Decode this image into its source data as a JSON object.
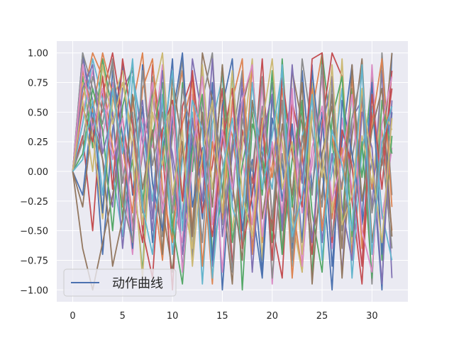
{
  "chart_data": {
    "type": "line",
    "title": "",
    "xlabel": "",
    "ylabel": "",
    "xlim": [
      -1.6,
      33.6
    ],
    "ylim": [
      -1.1,
      1.1
    ],
    "x_ticks": [
      0,
      5,
      10,
      15,
      20,
      25,
      30
    ],
    "x_tick_labels": [
      "0",
      "5",
      "10",
      "15",
      "20",
      "25",
      "30"
    ],
    "y_ticks": [
      -1.0,
      -0.75,
      -0.5,
      -0.25,
      0.0,
      0.25,
      0.5,
      0.75,
      1.0
    ],
    "y_tick_labels": [
      "−1.00",
      "−0.75",
      "−0.50",
      "−0.25",
      "0.00",
      "0.25",
      "0.50",
      "0.75",
      "1.00"
    ],
    "x": [
      0,
      1,
      2,
      3,
      4,
      5,
      6,
      7,
      8,
      9,
      10,
      11,
      12,
      13,
      14,
      15,
      16,
      17,
      18,
      19,
      20,
      21,
      22,
      23,
      24,
      25,
      26,
      27,
      28,
      29,
      30,
      31,
      32
    ],
    "grid": true,
    "background": "#eaeaf2",
    "legend": {
      "position": "lower-left",
      "entries": [
        "动作曲线"
      ]
    },
    "palette": [
      "#4c72b0",
      "#dd8452",
      "#55a868",
      "#c44e52",
      "#8172b3",
      "#937860",
      "#da8bc3",
      "#8c8c8c",
      "#ccb974",
      "#64b5cd"
    ],
    "series": [
      {
        "name": "动作曲线",
        "color": "#4c72b0",
        "values": [
          0.0,
          1.0,
          0.42,
          -0.7,
          0.35,
          0.9,
          -0.2,
          0.55,
          -0.6,
          0.1,
          0.95,
          -0.85,
          0.3,
          -0.4,
          0.75,
          -1.0,
          0.2,
          0.6,
          -0.3,
          -0.9,
          0.45,
          0.05,
          -0.65,
          0.85,
          -0.15,
          0.5,
          -0.8,
          0.25,
          0.9,
          -0.45,
          0.1,
          -1.0,
          1.0
        ]
      },
      {
        "color": "#dd8452",
        "values": [
          0.0,
          0.62,
          1.0,
          0.8,
          0.2,
          -0.3,
          0.55,
          1.0,
          -0.1,
          -0.75,
          0.4,
          0.85,
          -0.5,
          0.15,
          -0.95,
          0.6,
          0.3,
          -0.35,
          0.9,
          -0.6,
          0.05,
          0.7,
          -0.25,
          -0.85,
          0.5,
          1.0,
          -0.4,
          0.2,
          -0.7,
          0.65,
          -0.15,
          0.35,
          -0.5
        ]
      },
      {
        "color": "#55a868",
        "values": [
          0.0,
          0.8,
          0.2,
          0.95,
          0.5,
          -0.4,
          0.1,
          -0.85,
          0.65,
          0.3,
          -0.55,
          0.75,
          0.0,
          0.9,
          -0.7,
          -0.2,
          0.85,
          -1.0,
          0.4,
          0.15,
          -0.6,
          0.95,
          -0.3,
          0.55,
          -0.9,
          1.0,
          0.25,
          -0.45,
          0.7,
          -0.05,
          0.8,
          -0.75,
          0.3
        ]
      },
      {
        "color": "#c44e52",
        "values": [
          0.0,
          0.3,
          -0.5,
          0.65,
          1.0,
          0.45,
          -0.15,
          -0.6,
          0.9,
          0.2,
          -1.0,
          0.55,
          0.8,
          -0.35,
          0.05,
          0.7,
          -0.8,
          0.35,
          -0.1,
          0.95,
          -0.45,
          -0.9,
          0.6,
          0.15,
          -0.7,
          0.4,
          1.0,
          0.8,
          -0.25,
          -0.95,
          0.5,
          0.05,
          0.7
        ]
      },
      {
        "color": "#8172b3",
        "values": [
          0.0,
          0.95,
          0.6,
          0.1,
          -0.3,
          0.7,
          0.85,
          0.25,
          -0.5,
          0.6,
          0.15,
          -0.4,
          0.95,
          0.45,
          -0.8,
          0.3,
          -0.25,
          0.8,
          -0.65,
          0.1,
          0.75,
          -0.5,
          0.35,
          -0.1,
          0.9,
          -0.6,
          0.15,
          -0.85,
          0.45,
          0.6,
          -0.3,
          0.85,
          -0.9
        ]
      },
      {
        "color": "#937860",
        "values": [
          0.0,
          -0.65,
          -1.0,
          -0.6,
          -0.2,
          0.3,
          -0.45,
          0.15,
          0.7,
          -0.3,
          -0.85,
          0.25,
          -0.5,
          1.0,
          0.6,
          -0.15,
          -0.95,
          0.55,
          0.9,
          -0.4,
          0.2,
          -0.7,
          0.85,
          0.4,
          -0.55,
          -0.2,
          0.65,
          -0.9,
          0.3,
          0.95,
          -0.6,
          0.1,
          1.0
        ]
      },
      {
        "color": "#da8bc3",
        "values": [
          0.0,
          0.5,
          0.85,
          0.3,
          0.75,
          0.05,
          -0.7,
          0.45,
          0.2,
          0.9,
          -0.25,
          -0.6,
          0.65,
          -0.05,
          0.35,
          -0.85,
          0.55,
          0.1,
          -0.45,
          0.75,
          -0.95,
          0.3,
          0.6,
          -0.35,
          0.05,
          0.8,
          -0.65,
          0.45,
          -0.15,
          -0.8,
          0.9,
          -0.4,
          0.2
        ]
      },
      {
        "color": "#8c8c8c",
        "values": [
          0.0,
          1.0,
          0.7,
          0.4,
          0.95,
          -0.1,
          0.5,
          -0.35,
          0.8,
          -0.55,
          0.3,
          0.95,
          -0.75,
          0.6,
          1.0,
          -0.45,
          0.25,
          0.85,
          -0.2,
          0.55,
          -0.9,
          0.15,
          -0.6,
          0.95,
          0.35,
          -0.3,
          0.75,
          -0.5,
          0.1,
          0.65,
          -0.95,
          1.0,
          -0.2
        ]
      },
      {
        "color": "#ccb974",
        "values": [
          0.0,
          0.75,
          0.3,
          -0.4,
          0.6,
          0.85,
          0.15,
          -0.9,
          0.5,
          0.05,
          0.7,
          -0.2,
          -0.65,
          0.9,
          -0.15,
          0.45,
          -0.5,
          0.2,
          0.95,
          -0.75,
          0.6,
          0.25,
          -0.4,
          -0.85,
          0.75,
          0.1,
          -0.35,
          0.95,
          -0.6,
          0.3,
          -0.1,
          0.55,
          0.35
        ]
      },
      {
        "color": "#64b5cd",
        "values": [
          0.0,
          0.4,
          0.95,
          0.6,
          0.0,
          -0.55,
          0.8,
          0.35,
          -0.25,
          0.65,
          -0.7,
          0.1,
          0.5,
          -0.95,
          0.4,
          0.8,
          -0.3,
          -0.6,
          0.55,
          0.2,
          -0.15,
          0.9,
          -0.8,
          0.3,
          0.6,
          -0.45,
          0.0,
          0.7,
          -0.9,
          0.2,
          0.55,
          -0.35,
          -0.75
        ]
      },
      {
        "color": "#4c72b0",
        "values": [
          0.0,
          -0.2,
          0.55,
          -0.35,
          0.85,
          0.3,
          -0.65,
          0.9,
          -0.1,
          -0.5,
          0.45,
          1.0,
          -0.3,
          0.2,
          -0.75,
          0.55,
          0.95,
          -0.5,
          0.1,
          -0.85,
          0.65,
          -0.25,
          0.4,
          -0.6,
          0.85,
          0.05,
          -1.0,
          0.6,
          0.15,
          -0.4,
          0.75,
          -0.7,
          0.5
        ]
      },
      {
        "color": "#dd8452",
        "values": [
          0.0,
          0.85,
          0.5,
          1.0,
          0.65,
          0.2,
          -0.35,
          0.7,
          0.95,
          -0.15,
          -0.6,
          0.4,
          0.75,
          -0.8,
          0.25,
          -0.4,
          0.6,
          0.95,
          -0.7,
          0.35,
          -0.05,
          0.55,
          -0.9,
          0.15,
          0.7,
          -0.5,
          0.3,
          -0.15,
          0.8,
          -0.65,
          0.4,
          0.95,
          -0.3
        ]
      },
      {
        "color": "#55a868",
        "values": [
          0.0,
          0.15,
          0.7,
          0.35,
          -0.5,
          0.55,
          0.9,
          -0.25,
          0.3,
          0.75,
          -0.45,
          -0.95,
          0.2,
          0.65,
          -0.3,
          0.9,
          -0.6,
          0.05,
          0.5,
          -0.2,
          0.85,
          -0.7,
          0.1,
          0.6,
          -0.35,
          -0.85,
          0.45,
          0.8,
          -0.55,
          0.25,
          -0.9,
          0.6,
          0.15
        ]
      },
      {
        "color": "#c44e52",
        "values": [
          0.0,
          0.55,
          0.25,
          0.8,
          -0.15,
          0.95,
          0.4,
          -0.5,
          -0.9,
          0.35,
          0.6,
          -0.25,
          0.85,
          0.05,
          -0.55,
          0.25,
          0.7,
          -0.65,
          -0.2,
          0.45,
          -0.75,
          0.8,
          0.15,
          -0.3,
          0.95,
          1.0,
          -0.6,
          0.35,
          0.05,
          -0.8,
          0.65,
          -0.15,
          0.85
        ]
      },
      {
        "color": "#8172b3",
        "values": [
          0.0,
          0.7,
          0.9,
          0.15,
          0.5,
          -0.65,
          0.25,
          0.6,
          -0.4,
          0.85,
          0.05,
          -0.7,
          0.45,
          -0.25,
          0.95,
          -0.55,
          0.15,
          0.7,
          -0.85,
          0.3,
          0.65,
          -0.45,
          0.9,
          -0.05,
          -0.6,
          0.35,
          0.8,
          -0.3,
          -0.75,
          0.5,
          0.2,
          -0.95,
          0.6
        ]
      },
      {
        "color": "#937860",
        "values": [
          0.0,
          -0.3,
          0.45,
          0.1,
          -0.8,
          -0.4,
          0.65,
          -0.15,
          0.35,
          -0.7,
          0.8,
          0.2,
          -0.55,
          0.5,
          -0.3,
          0.9,
          -0.1,
          -0.75,
          0.6,
          0.05,
          -0.5,
          0.4,
          -0.2,
          0.75,
          -0.95,
          0.15,
          0.55,
          -0.65,
          0.9,
          -0.25,
          0.35,
          0.7,
          -0.55
        ]
      },
      {
        "color": "#da8bc3",
        "values": [
          0.0,
          0.9,
          0.35,
          0.7,
          0.1,
          0.45,
          -0.5,
          0.2,
          0.75,
          -0.35,
          0.55,
          -0.85,
          0.1,
          0.8,
          -0.45,
          0.35,
          -0.15,
          0.6,
          0.9,
          -0.55,
          0.25,
          -0.35,
          0.7,
          -0.8,
          0.2,
          0.55,
          -0.25,
          0.1,
          0.65,
          -0.5,
          -0.85,
          0.4,
          0.8
        ]
      },
      {
        "color": "#8c8c8c",
        "values": [
          0.0,
          0.25,
          0.8,
          0.5,
          0.9,
          -0.25,
          -0.6,
          0.85,
          0.05,
          0.5,
          -0.35,
          0.7,
          0.3,
          -0.6,
          0.55,
          0.1,
          -0.85,
          0.45,
          0.0,
          0.8,
          -0.4,
          0.6,
          -0.75,
          0.3,
          -0.2,
          0.9,
          -0.55,
          -0.1,
          0.45,
          0.85,
          -0.35,
          0.2,
          -0.65
        ]
      },
      {
        "color": "#ccb974",
        "values": [
          0.0,
          0.6,
          0.0,
          0.9,
          0.4,
          0.75,
          0.3,
          -0.45,
          0.6,
          1.0,
          -0.2,
          0.35,
          -0.8,
          0.15,
          0.6,
          -0.35,
          0.85,
          -0.2,
          -0.55,
          0.4,
          0.95,
          -0.15,
          0.25,
          -0.7,
          0.5,
          -0.05,
          0.9,
          -0.45,
          -0.2,
          0.7,
          0.05,
          -0.6,
          0.45
        ]
      },
      {
        "color": "#64b5cd",
        "values": [
          0.0,
          0.1,
          0.6,
          -0.2,
          0.7,
          0.15,
          0.95,
          -0.3,
          -0.7,
          0.25,
          0.85,
          -0.5,
          0.6,
          0.35,
          -0.9,
          0.0,
          0.45,
          -0.4,
          0.75,
          -0.15,
          0.3,
          0.85,
          -0.55,
          -0.2,
          0.65,
          -0.75,
          0.35,
          0.05,
          -0.5,
          0.9,
          -0.7,
          0.25,
          0.55
        ]
      }
    ]
  }
}
